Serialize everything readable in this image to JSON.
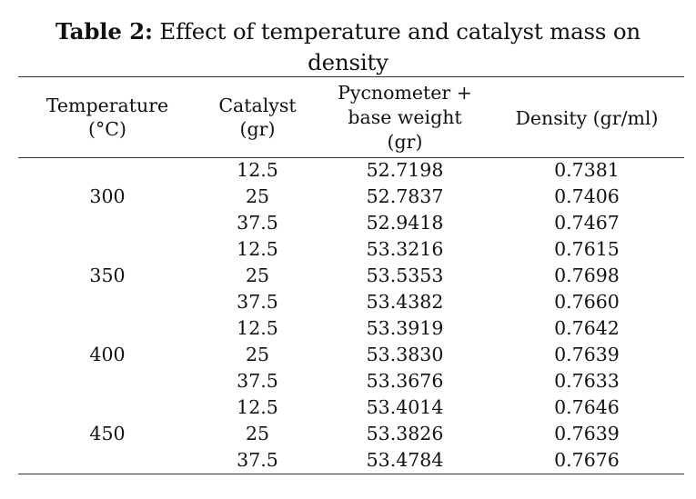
{
  "caption": {
    "lead": "Table 2:",
    "line1": " Effect of temperature and catalyst mass on",
    "line2": "density"
  },
  "headers": {
    "temperature": [
      "Temperature",
      "(°C)"
    ],
    "catalyst": [
      "Catalyst",
      "(gr)"
    ],
    "pycnometer": [
      "Pycnometer +",
      "base weight",
      "(gr)"
    ],
    "density": [
      "Density (gr/ml)"
    ]
  },
  "groups": [
    {
      "temperature": "300",
      "rows": [
        {
          "catalyst": "12.5",
          "weight": "52.7198",
          "density": "0.7381"
        },
        {
          "catalyst": "25",
          "weight": "52.7837",
          "density": "0.7406"
        },
        {
          "catalyst": "37.5",
          "weight": "52.9418",
          "density": "0.7467"
        }
      ]
    },
    {
      "temperature": "350",
      "rows": [
        {
          "catalyst": "12.5",
          "weight": "53.3216",
          "density": "0.7615"
        },
        {
          "catalyst": "25",
          "weight": "53.5353",
          "density": "0.7698"
        },
        {
          "catalyst": "37.5",
          "weight": "53.4382",
          "density": "0.7660"
        }
      ]
    },
    {
      "temperature": "400",
      "rows": [
        {
          "catalyst": "12.5",
          "weight": "53.3919",
          "density": "0.7642"
        },
        {
          "catalyst": "25",
          "weight": "53.3830",
          "density": "0.7639"
        },
        {
          "catalyst": "37.5",
          "weight": "53.3676",
          "density": "0.7633"
        }
      ]
    },
    {
      "temperature": "450",
      "rows": [
        {
          "catalyst": "12.5",
          "weight": "53.4014",
          "density": "0.7646"
        },
        {
          "catalyst": "25",
          "weight": "53.3826",
          "density": "0.7639"
        },
        {
          "catalyst": "37.5",
          "weight": "53.4784",
          "density": "0.7676"
        }
      ]
    }
  ]
}
